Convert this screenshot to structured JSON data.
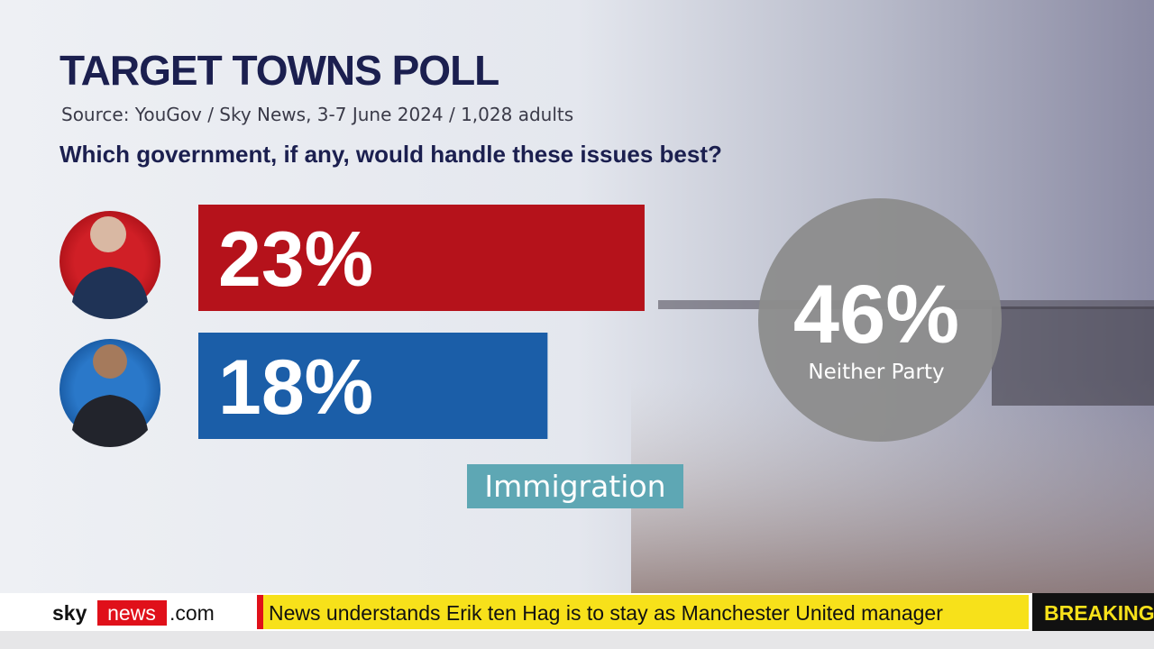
{
  "chart_data": {
    "type": "bar",
    "title": "TARGET TOWNS POLL",
    "subtitle": "Source: YouGov / Sky News, 3-7 June 2024 / 1,028 adults",
    "question": "Which government, if any, would handle these issues best?",
    "categories": [
      null,
      null
    ],
    "values": [
      23,
      18
    ],
    "value_labels": [
      "23%",
      "18%"
    ],
    "colors": [
      "#b5121b",
      "#1b5ea8"
    ],
    "topic": "Immigration",
    "callout": {
      "value": 46,
      "value_label": "46%",
      "text": "Neither Party",
      "color": "#8c8c8c"
    }
  },
  "ticker": {
    "brand_sky": "sky",
    "brand_news": "news",
    "brand_domain": ".com",
    "headline": "News understands Erik ten Hag is to stay as Manchester United manager",
    "flash": "BREAKING"
  }
}
